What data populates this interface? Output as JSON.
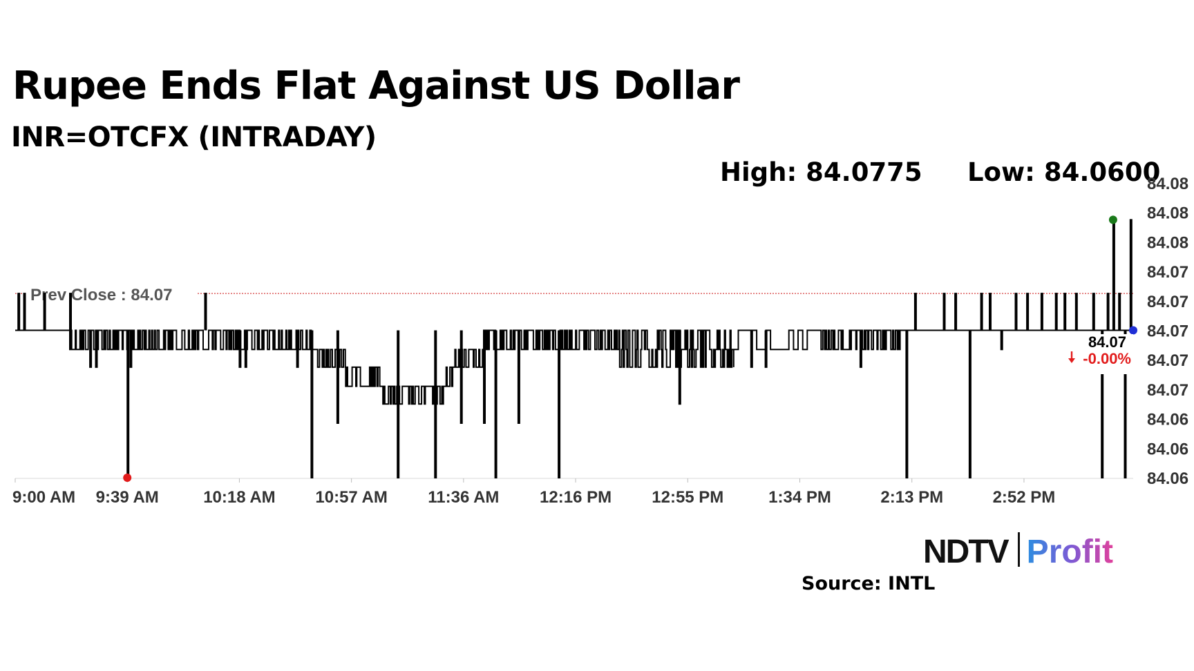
{
  "header": {
    "title": "Rupee Ends Flat Against US Dollar",
    "subtitle": "INR=OTCFX (INTRADAY)",
    "high_text": "High: 84.0775",
    "low_text": "Low: 84.0600"
  },
  "footer": {
    "logo_brand": "NDTV",
    "logo_product": "Profit",
    "source": "Source: INTL"
  },
  "colors": {
    "line": "#000000",
    "prev_close": "#d43c3c",
    "low_marker": "#e21b1b",
    "high_marker": "#1a7a1a",
    "last_marker": "#1f2fd6",
    "change": "#e21b1b",
    "axis_text": "#333333"
  },
  "chart_data": {
    "type": "line",
    "title": "Rupee Ends Flat Against US Dollar",
    "subtitle": "INR=OTCFX (INTRADAY)",
    "xlabel": "",
    "ylabel": "",
    "x_ticks": [
      "9:00 AM",
      "9:39 AM",
      "10:18 AM",
      "10:57 AM",
      "11:36 AM",
      "12:16 PM",
      "12:55 PM",
      "1:34 PM",
      "2:13 PM",
      "2:52 PM"
    ],
    "y_ticks": [
      "84.08",
      "84.08",
      "84.08",
      "84.07",
      "84.07",
      "84.07",
      "84.07",
      "84.07",
      "84.06",
      "84.06",
      "84.06"
    ],
    "ylim": [
      84.06,
      84.08
    ],
    "xlim_minutes": [
      0,
      389
    ],
    "prev_close": {
      "label": "Prev Close : 84.07",
      "value": 84.0725
    },
    "high": {
      "label": "High",
      "value": 84.0775,
      "time_minutes": 382
    },
    "low": {
      "label": "Low",
      "value": 84.06,
      "time_minutes": 39
    },
    "last": {
      "value": 84.07,
      "label": "84.07",
      "change": "-0.00%",
      "change_icon": "down-arrow"
    },
    "base_level": 84.07,
    "series": [
      {
        "name": "INR=OTCFX",
        "segments": [
          {
            "start": 0,
            "end": 19,
            "mode": "stable",
            "level": 84.07
          },
          {
            "start": 19,
            "end": 103,
            "mode": "choppy",
            "levels": [
              84.07,
              84.0687
            ]
          },
          {
            "start": 103,
            "end": 115,
            "mode": "choppy",
            "levels": [
              84.0687,
              84.0675
            ]
          },
          {
            "start": 115,
            "end": 127,
            "mode": "choppy",
            "levels": [
              84.0675,
              84.0662
            ]
          },
          {
            "start": 127,
            "end": 149,
            "mode": "choppy",
            "levels": [
              84.0662,
              84.065
            ]
          },
          {
            "start": 149,
            "end": 153,
            "mode": "choppy",
            "levels": [
              84.0662,
              84.0675
            ]
          },
          {
            "start": 153,
            "end": 163,
            "mode": "choppy",
            "levels": [
              84.0675,
              84.0687
            ]
          },
          {
            "start": 163,
            "end": 210,
            "mode": "choppy",
            "levels": [
              84.07,
              84.0687
            ]
          },
          {
            "start": 210,
            "end": 250,
            "mode": "choppy",
            "levels": [
              84.0687,
              84.0675,
              84.07
            ]
          },
          {
            "start": 250,
            "end": 281,
            "mode": "sparse",
            "levels": [
              84.07,
              84.0687
            ]
          },
          {
            "start": 281,
            "end": 308,
            "mode": "choppy",
            "levels": [
              84.07,
              84.0687
            ]
          },
          {
            "start": 308,
            "end": 389,
            "mode": "stable",
            "level": 84.07
          }
        ],
        "spikes": [
          {
            "t": 1,
            "v": 84.0725
          },
          {
            "t": 3,
            "v": 84.0725
          },
          {
            "t": 10,
            "v": 84.0725
          },
          {
            "t": 19,
            "v": 84.0725
          },
          {
            "t": 26,
            "v": 84.0675
          },
          {
            "t": 28,
            "v": 84.0675
          },
          {
            "t": 39,
            "v": 84.06
          },
          {
            "t": 40,
            "v": 84.0675
          },
          {
            "t": 66,
            "v": 84.0725
          },
          {
            "t": 78,
            "v": 84.0675
          },
          {
            "t": 80,
            "v": 84.0675
          },
          {
            "t": 98,
            "v": 84.0675
          },
          {
            "t": 103,
            "v": 84.06
          },
          {
            "t": 112,
            "v": 84.0637
          },
          {
            "t": 133,
            "v": 84.06
          },
          {
            "t": 146,
            "v": 84.06
          },
          {
            "t": 155,
            "v": 84.0637
          },
          {
            "t": 163,
            "v": 84.0637
          },
          {
            "t": 167,
            "v": 84.06
          },
          {
            "t": 175,
            "v": 84.0637
          },
          {
            "t": 189,
            "v": 84.06
          },
          {
            "t": 231,
            "v": 84.065
          },
          {
            "t": 239,
            "v": 84.0675
          },
          {
            "t": 256,
            "v": 84.0675
          },
          {
            "t": 261,
            "v": 84.0675
          },
          {
            "t": 294,
            "v": 84.0675
          },
          {
            "t": 310,
            "v": 84.06
          },
          {
            "t": 313,
            "v": 84.0725
          },
          {
            "t": 323,
            "v": 84.0725
          },
          {
            "t": 327,
            "v": 84.0725
          },
          {
            "t": 332,
            "v": 84.06
          },
          {
            "t": 336,
            "v": 84.0725
          },
          {
            "t": 339,
            "v": 84.0725
          },
          {
            "t": 343,
            "v": 84.0687
          },
          {
            "t": 348,
            "v": 84.0725
          },
          {
            "t": 352,
            "v": 84.0725
          },
          {
            "t": 357,
            "v": 84.0725
          },
          {
            "t": 362,
            "v": 84.0725
          },
          {
            "t": 365,
            "v": 84.0725
          },
          {
            "t": 369,
            "v": 84.0725
          },
          {
            "t": 375,
            "v": 84.0725
          },
          {
            "t": 378,
            "v": 84.06
          },
          {
            "t": 380,
            "v": 84.0725
          },
          {
            "t": 382,
            "v": 84.0775
          },
          {
            "t": 384,
            "v": 84.0725
          },
          {
            "t": 386,
            "v": 84.06
          },
          {
            "t": 388,
            "v": 84.0775
          }
        ]
      }
    ]
  }
}
